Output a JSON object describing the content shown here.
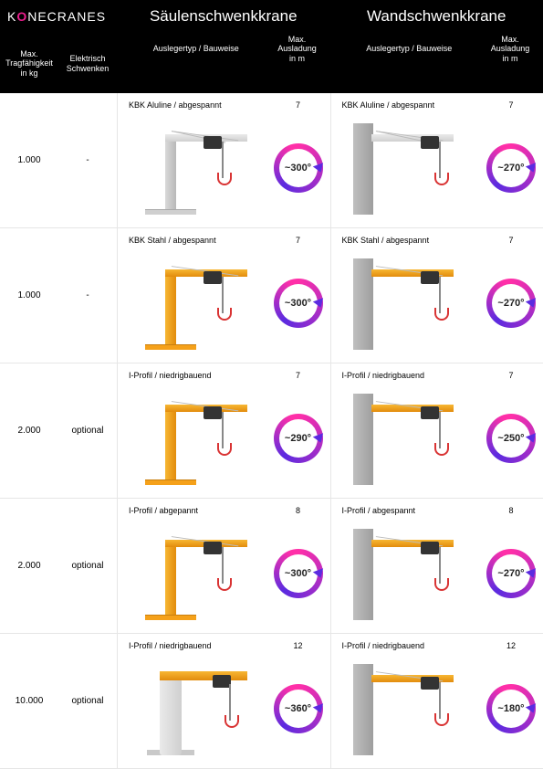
{
  "brand": "KONECRANES",
  "sections": {
    "left_title": "Säulenschwenkkrane",
    "right_title": "Wandschwenkkrane"
  },
  "headers": {
    "capacity": "Max.\nTragfähigkeit\nin kg",
    "electric": "Elektrisch\nSchwenken",
    "arm_type": "Auslegertyp / Bauweise",
    "reach": "Max.\nAusladung\nin m"
  },
  "rows": [
    {
      "capacity": "1.000",
      "electric": "-",
      "left": {
        "type": "KBK Aluline / abgespannt",
        "reach": "7",
        "rotation": "~300°",
        "crane": "col_gray"
      },
      "right": {
        "type": "KBK Aluline / abgespannt",
        "reach": "7",
        "rotation": "~270°",
        "crane": "wall_gray"
      }
    },
    {
      "capacity": "1.000",
      "electric": "-",
      "left": {
        "type": "KBK Stahl / abgespannt",
        "reach": "7",
        "rotation": "~300°",
        "crane": "col_orange"
      },
      "right": {
        "type": "KBK Stahl / abgespannt",
        "reach": "7",
        "rotation": "~270°",
        "crane": "wall_orange"
      }
    },
    {
      "capacity": "2.000",
      "electric": "optional",
      "left": {
        "type": "I-Profil / niedrigbauend",
        "reach": "7",
        "rotation": "~290°",
        "crane": "col_orange"
      },
      "right": {
        "type": "I-Profil / niedrigbauend",
        "reach": "7",
        "rotation": "~250°",
        "crane": "wall_orange"
      }
    },
    {
      "capacity": "2.000",
      "electric": "optional",
      "left": {
        "type": "I-Profil / abgepannt",
        "reach": "8",
        "rotation": "~300°",
        "crane": "col_orange"
      },
      "right": {
        "type": "I-Profil / abgespannt",
        "reach": "8",
        "rotation": "~270°",
        "crane": "wall_orange"
      }
    },
    {
      "capacity": "10.000",
      "electric": "optional",
      "left": {
        "type": "I-Profil / niedrigbauend",
        "reach": "12",
        "rotation": "~360°",
        "crane": "col_heavy"
      },
      "right": {
        "type": "I-Profil / niedrigbauend",
        "reach": "12",
        "rotation": "~180°",
        "crane": "wall_orange"
      }
    }
  ],
  "colors": {
    "brand_pink": "#e91e8c",
    "ring_start": "#ff2fa8",
    "ring_end": "#5b2be0",
    "orange": "#f5a11a",
    "gray": "#bfbfbf"
  }
}
